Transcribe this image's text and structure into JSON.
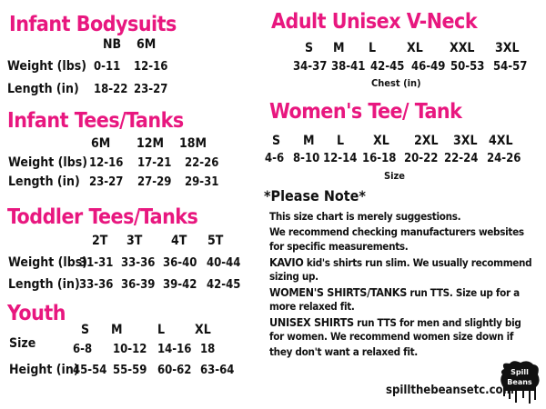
{
  "infant_bodysuits": {
    "title": "Infant Bodysuits",
    "sizes": [
      "NB",
      "6M"
    ],
    "rows": [
      {
        "label": "Weight (lbs)",
        "values": [
          "0-11",
          "12-16"
        ]
      },
      {
        "label": "Length (in)",
        "values": [
          "18-22",
          "23-27"
        ]
      }
    ]
  },
  "infant_tees": {
    "title": "Infant Tees/Tanks",
    "sizes": [
      "6M",
      "12M",
      "18M"
    ],
    "rows": [
      {
        "label": "Weight (lbs)",
        "values": [
          "12-16",
          "17-21",
          "22-26"
        ]
      },
      {
        "label": "Length (in)",
        "values": [
          "23-27",
          "27-29",
          "29-31"
        ]
      }
    ]
  },
  "toddler_tees": {
    "title": "Toddler  Tees/Tanks",
    "sizes": [
      "2T",
      "3T",
      "4T",
      "5T"
    ],
    "rows": [
      {
        "label": "Weight (lbs)",
        "values": [
          "31-31",
          "33-36",
          "36-40",
          "40-44"
        ]
      },
      {
        "label": "Length (in)",
        "values": [
          "33-36",
          "36-39",
          "39-42",
          "42-45"
        ]
      }
    ]
  },
  "youth": {
    "title": "Youth",
    "sizes": [
      "S",
      "M",
      "L",
      "XL"
    ],
    "rows": [
      {
        "label": "Size",
        "values": [
          "6-8",
          "10-12",
          "14-16",
          "18"
        ]
      },
      {
        "label": "Height (in)",
        "values": [
          "45-54",
          "55-59",
          "60-62",
          "63-64"
        ]
      }
    ]
  },
  "adult_unisex": {
    "title": "Adult Unisex V-Neck",
    "sizes": [
      "S",
      "M",
      "L",
      "XL",
      "XXL",
      "3XL"
    ],
    "values": [
      "34-37",
      "38-41",
      "42-45",
      "46-49",
      "50-53",
      "54-57"
    ],
    "caption": "Chest (in)"
  },
  "womens": {
    "title": "Women's Tee/ Tank",
    "sizes": [
      "S",
      "M",
      "L",
      "XL",
      "2XL",
      "3XL",
      "4XL"
    ],
    "values": [
      "4-6",
      "8-10",
      "12-14",
      "16-18",
      "20-22",
      "22-24",
      "24-26"
    ],
    "caption": "Size"
  },
  "note": {
    "heading": "*Please Note*",
    "lines": [
      {
        "bold": "",
        "text": "This size chart is merely suggestions."
      },
      {
        "bold": "",
        "text": "We recommend checking manufacturers websites"
      },
      {
        "bold": "",
        "text": "for specific measurements."
      },
      {
        "bold": "KAVIO",
        "text": " kid's shirts run slim. We usually recommend"
      },
      {
        "bold": "",
        "text": "sizing up."
      },
      {
        "bold": "WOMEN'S SHIRTS/TANKS",
        "text": " run TTS. Size up for a"
      },
      {
        "bold": "",
        "text": "more relaxed fit."
      },
      {
        "bold": "UNISEX SHIRTS",
        "text": " run TTS for men and slightly big"
      },
      {
        "bold": "",
        "text": "for women. We recommend women size down if"
      },
      {
        "bold": "",
        "text": "they don't want a relaxed fit."
      }
    ]
  },
  "footer": {
    "url": "spillthebeansetc.com",
    "logo_text": "Spill the Beans"
  },
  "colors": {
    "title": "#e8177f",
    "text": "#111111"
  }
}
